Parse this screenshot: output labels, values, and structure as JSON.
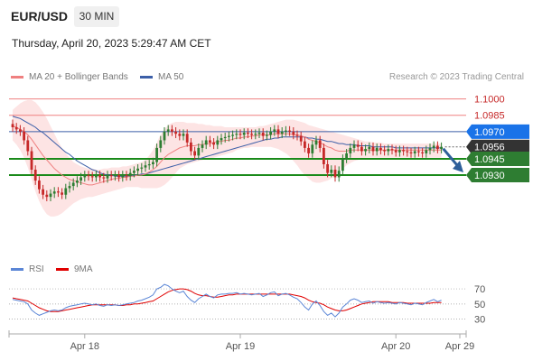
{
  "header": {
    "pair": "EUR/USD",
    "timeframe": "30 MIN",
    "date": "Thursday, April 20, 2023 5:29:47 AM CET"
  },
  "legend": {
    "ma20": "MA 20 + Bollinger Bands",
    "ma50": "MA 50",
    "rsi": "RSI",
    "ma9": "9MA"
  },
  "credit": "Research © 2023 Trading Central",
  "colors": {
    "up": "#2e7d32",
    "down": "#c62828",
    "ma20": "#ef8080",
    "ma50": "#3c5fa8",
    "band": "#fde4e4",
    "support": "#1a8a1a",
    "resistance": "#ef8080",
    "current": "#333333",
    "arrow": "#2e5f9a"
  },
  "chart_data": [
    {
      "type": "candlestick",
      "x_tick_labels": [
        "Apr 18",
        "Apr 19",
        "Apr 20",
        "Apr 29"
      ],
      "ylim": [
        1.0867,
        1.1008
      ],
      "price_levels": [
        {
          "label": "1.1000",
          "value": 1.1,
          "kind": "resistance"
        },
        {
          "label": "1.0985",
          "value": 1.0985,
          "kind": "resistance"
        },
        {
          "label": "1.0970",
          "value": 1.097,
          "kind": "pivot"
        },
        {
          "label": "1.0956",
          "value": 1.0956,
          "kind": "current"
        },
        {
          "label": "1.0945",
          "value": 1.0945,
          "kind": "support"
        },
        {
          "label": "1.0930",
          "value": 1.093,
          "kind": "support"
        }
      ],
      "close": [
        1.0974,
        1.0972,
        1.097,
        1.0962,
        1.0952,
        1.0935,
        1.0925,
        1.0917,
        1.0912,
        1.091,
        1.0913,
        1.0915,
        1.0914,
        1.0912,
        1.0918,
        1.092,
        1.0923,
        1.0925,
        1.0928,
        1.093,
        1.0929,
        1.0928,
        1.093,
        1.0928,
        1.0927,
        1.093,
        1.0929,
        1.093,
        1.0928,
        1.093,
        1.0929,
        1.0932,
        1.0934,
        1.0936,
        1.0937,
        1.0939,
        1.094,
        1.0942,
        1.0955,
        1.0962,
        1.097,
        1.0972,
        1.097,
        1.0968,
        1.0966,
        1.0968,
        1.096,
        1.0952,
        1.0948,
        1.0955,
        1.0958,
        1.0962,
        1.096,
        1.0958,
        1.0962,
        1.0964,
        1.0965,
        1.0966,
        1.0967,
        1.0968,
        1.0967,
        1.0969,
        1.0968,
        1.0967,
        1.0968,
        1.0969,
        1.0966,
        1.0967,
        1.097,
        1.0972,
        1.0968,
        1.097,
        1.0971,
        1.097,
        1.0967,
        1.0966,
        1.0961,
        1.0955,
        1.095,
        1.0958,
        1.0962,
        1.0955,
        1.094,
        1.0932,
        1.0935,
        1.0928,
        1.0934,
        1.0945,
        1.095,
        1.0955,
        1.0958,
        1.0956,
        1.0952,
        1.0954,
        1.0956,
        1.0952,
        1.0955,
        1.0953,
        1.0952,
        1.0954,
        1.0953,
        1.0951,
        1.0953,
        1.0952,
        1.0951,
        1.095,
        1.0952,
        1.0951,
        1.095,
        1.0953,
        1.0955,
        1.0957,
        1.0954,
        1.0956
      ],
      "ma20": [
        1.0975,
        1.0974,
        1.0972,
        1.097,
        1.0967,
        1.0963,
        1.0958,
        1.0953,
        1.0948,
        1.0944,
        1.094,
        1.0936,
        1.0933,
        1.093,
        1.0928,
        1.0926,
        1.0925,
        1.0924,
        1.0923,
        1.0922,
        1.0921,
        1.0921,
        1.0922,
        1.0923,
        1.0924,
        1.0925,
        1.0926,
        1.0927,
        1.0927,
        1.0928,
        1.0928,
        1.0929,
        1.0929,
        1.093,
        1.093,
        1.0931,
        1.0933,
        1.0935,
        1.0938,
        1.0942,
        1.0946,
        1.0949,
        1.0951,
        1.0953,
        1.0955,
        1.0956,
        1.0957,
        1.0957,
        1.0957,
        1.0958,
        1.0958,
        1.0959,
        1.0959,
        1.096,
        1.0961,
        1.0961,
        1.0962,
        1.0962,
        1.0963,
        1.0964,
        1.0964,
        1.0965,
        1.0965,
        1.0966,
        1.0966,
        1.0967,
        1.0967,
        1.0967,
        1.0967,
        1.0968,
        1.0968,
        1.0968,
        1.0968,
        1.0968,
        1.0967,
        1.0967,
        1.0966,
        1.0965,
        1.0963,
        1.0962,
        1.0961,
        1.096,
        1.0958,
        1.0956,
        1.0955,
        1.0953,
        1.0952,
        1.0952,
        1.0952,
        1.0953,
        1.0953,
        1.0953,
        1.0953,
        1.0953,
        1.0953,
        1.0953,
        1.0953,
        1.0953,
        1.0953,
        1.0953,
        1.0953,
        1.0953,
        1.0953,
        1.0953,
        1.0953,
        1.0953,
        1.0953,
        1.0953,
        1.0953,
        1.0953,
        1.0953,
        1.0953,
        1.0953,
        1.0953
      ],
      "band_upper": [
        1.099,
        1.0993,
        1.0996,
        1.0998,
        1.0999,
        1.0999,
        1.0997,
        1.0993,
        1.0988,
        1.0982,
        1.0975,
        1.0968,
        1.0961,
        1.0955,
        1.095,
        1.0946,
        1.0942,
        1.094,
        1.0938,
        1.0937,
        1.0936,
        1.0936,
        1.0935,
        1.0935,
        1.0936,
        1.0936,
        1.0937,
        1.0937,
        1.0937,
        1.0938,
        1.0938,
        1.0939,
        1.094,
        1.0941,
        1.0942,
        1.0944,
        1.0948,
        1.0953,
        1.096,
        1.0967,
        1.0972,
        1.0976,
        1.0978,
        1.0979,
        1.0979,
        1.0979,
        1.0978,
        1.0978,
        1.0978,
        1.0977,
        1.0977,
        1.0976,
        1.0976,
        1.0975,
        1.0975,
        1.0975,
        1.0974,
        1.0974,
        1.0974,
        1.0974,
        1.0974,
        1.0974,
        1.0974,
        1.0974,
        1.0974,
        1.0975,
        1.0975,
        1.0976,
        1.0977,
        1.0978,
        1.0979,
        1.098,
        1.0981,
        1.0981,
        1.0981,
        1.098,
        1.0979,
        1.0978,
        1.0976,
        1.0975,
        1.0974,
        1.0973,
        1.0972,
        1.0971,
        1.097,
        1.0969,
        1.0968,
        1.0967,
        1.0966,
        1.0965,
        1.0964,
        1.0963,
        1.0962,
        1.0961,
        1.0961,
        1.096,
        1.096,
        1.096,
        1.0959,
        1.0959,
        1.0959,
        1.0959,
        1.0959,
        1.0959,
        1.0959,
        1.0959,
        1.0959,
        1.0959,
        1.0959,
        1.0959,
        1.0959,
        1.0959,
        1.0959,
        1.0959
      ],
      "band_lower": [
        1.0962,
        1.0958,
        1.0953,
        1.0946,
        1.0937,
        1.0926,
        1.0915,
        1.0906,
        1.0899,
        1.0894,
        1.0892,
        1.0892,
        1.0893,
        1.0895,
        1.0898,
        1.0901,
        1.0904,
        1.0906,
        1.0908,
        1.0909,
        1.091,
        1.091,
        1.0911,
        1.0912,
        1.0913,
        1.0914,
        1.0915,
        1.0916,
        1.0917,
        1.0918,
        1.0919,
        1.0919,
        1.0919,
        1.0919,
        1.0918,
        1.0918,
        1.0918,
        1.0918,
        1.0918,
        1.0919,
        1.0921,
        1.0924,
        1.0928,
        1.0932,
        1.0936,
        1.0938,
        1.094,
        1.0941,
        1.0942,
        1.0943,
        1.0944,
        1.0945,
        1.0945,
        1.0946,
        1.0947,
        1.0948,
        1.0949,
        1.095,
        1.0951,
        1.0953,
        1.0954,
        1.0955,
        1.0955,
        1.0956,
        1.0956,
        1.0956,
        1.0956,
        1.0956,
        1.0956,
        1.0955,
        1.0954,
        1.0952,
        1.095,
        1.0947,
        1.0943,
        1.0939,
        1.0934,
        1.093,
        1.0927,
        1.0924,
        1.0923,
        1.0923,
        1.0924,
        1.0925,
        1.0927,
        1.093,
        1.0933,
        1.0936,
        1.0939,
        1.0941,
        1.0943,
        1.0944,
        1.0945,
        1.0946,
        1.0946,
        1.0946,
        1.0946,
        1.0946,
        1.0946,
        1.0946,
        1.0946,
        1.0946,
        1.0946,
        1.0946,
        1.0946,
        1.0946,
        1.0946,
        1.0946,
        1.0946,
        1.0946,
        1.0946,
        1.0946,
        1.0946,
        1.0946
      ],
      "ma50": [
        1.0984,
        1.0983,
        1.0982,
        1.098,
        1.0978,
        1.0976,
        1.0974,
        1.0971,
        1.0969,
        1.0966,
        1.0963,
        1.096,
        1.0957,
        1.0954,
        1.0951,
        1.0949,
        1.0946,
        1.0943,
        1.0941,
        1.0939,
        1.0937,
        1.0935,
        1.0934,
        1.0932,
        1.0931,
        1.093,
        1.093,
        1.0929,
        1.0929,
        1.0929,
        1.0929,
        1.0929,
        1.093,
        1.093,
        1.0931,
        1.0931,
        1.0932,
        1.0933,
        1.0934,
        1.0935,
        1.0936,
        1.0937,
        1.0938,
        1.0939,
        1.094,
        1.0941,
        1.0942,
        1.0943,
        1.0944,
        1.0945,
        1.0946,
        1.0947,
        1.0948,
        1.0949,
        1.095,
        1.0951,
        1.0952,
        1.0953,
        1.0954,
        1.0955,
        1.0956,
        1.0957,
        1.0958,
        1.0959,
        1.096,
        1.0961,
        1.0962,
        1.0963,
        1.0963,
        1.0964,
        1.0964,
        1.0965,
        1.0965,
        1.0965,
        1.0965,
        1.0965,
        1.0965,
        1.0965,
        1.0964,
        1.0964,
        1.0963,
        1.0963,
        1.0962,
        1.0961,
        1.0961,
        1.096,
        1.0959,
        1.0959,
        1.0958,
        1.0958,
        1.0958,
        1.0957,
        1.0957,
        1.0957,
        1.0957,
        1.0956,
        1.0956,
        1.0956,
        1.0956,
        1.0956,
        1.0956,
        1.0955,
        1.0955,
        1.0955,
        1.0955,
        1.0955,
        1.0955,
        1.0955,
        1.0955,
        1.0955,
        1.0955,
        1.0955,
        1.0955,
        1.0955
      ]
    },
    {
      "type": "line",
      "series": [
        {
          "name": "RSI",
          "values": [
            56,
            55,
            54,
            53,
            50,
            42,
            38,
            35,
            37,
            39,
            41,
            42,
            41,
            42,
            45,
            47,
            48,
            49,
            50,
            51,
            50,
            49,
            50,
            48,
            47,
            49,
            48,
            49,
            48,
            49,
            50,
            51,
            52,
            54,
            55,
            57,
            59,
            62,
            70,
            72,
            76,
            74,
            70,
            67,
            65,
            67,
            60,
            55,
            52,
            57,
            60,
            63,
            60,
            58,
            62,
            63,
            63,
            64,
            64,
            65,
            63,
            64,
            63,
            62,
            63,
            64,
            60,
            62,
            65,
            66,
            61,
            63,
            64,
            62,
            59,
            57,
            52,
            46,
            42,
            50,
            54,
            48,
            40,
            35,
            38,
            33,
            38,
            46,
            50,
            55,
            57,
            55,
            52,
            53,
            54,
            51,
            53,
            52,
            51,
            52,
            51,
            50,
            52,
            51,
            50,
            49,
            51,
            50,
            49,
            52,
            54,
            56,
            53,
            55
          ]
        },
        {
          "name": "9MA",
          "values": [
            58,
            57,
            56,
            55,
            54,
            51,
            48,
            45,
            43,
            41,
            40,
            40,
            40,
            41,
            42,
            43,
            44,
            45,
            46,
            47,
            48,
            49,
            49,
            49,
            49,
            49,
            49,
            49,
            48,
            48,
            49,
            49,
            50,
            50,
            51,
            52,
            53,
            54,
            57,
            60,
            63,
            66,
            68,
            69,
            70,
            70,
            69,
            67,
            64,
            62,
            61,
            61,
            60,
            59,
            59,
            60,
            61,
            62,
            62,
            63,
            63,
            63,
            63,
            63,
            63,
            63,
            63,
            63,
            63,
            63,
            63,
            63,
            63,
            63,
            62,
            61,
            60,
            58,
            55,
            53,
            52,
            51,
            49,
            46,
            44,
            42,
            41,
            41,
            42,
            44,
            46,
            48,
            50,
            51,
            52,
            53,
            53,
            53,
            53,
            53,
            52,
            52,
            52,
            52,
            51,
            51,
            51,
            51,
            51,
            51,
            51,
            52,
            52,
            52
          ]
        }
      ],
      "y_tick_labels": [
        "70",
        "50",
        "30"
      ],
      "y_ticks": [
        70,
        50,
        30
      ],
      "ylim": [
        14,
        88
      ]
    }
  ]
}
